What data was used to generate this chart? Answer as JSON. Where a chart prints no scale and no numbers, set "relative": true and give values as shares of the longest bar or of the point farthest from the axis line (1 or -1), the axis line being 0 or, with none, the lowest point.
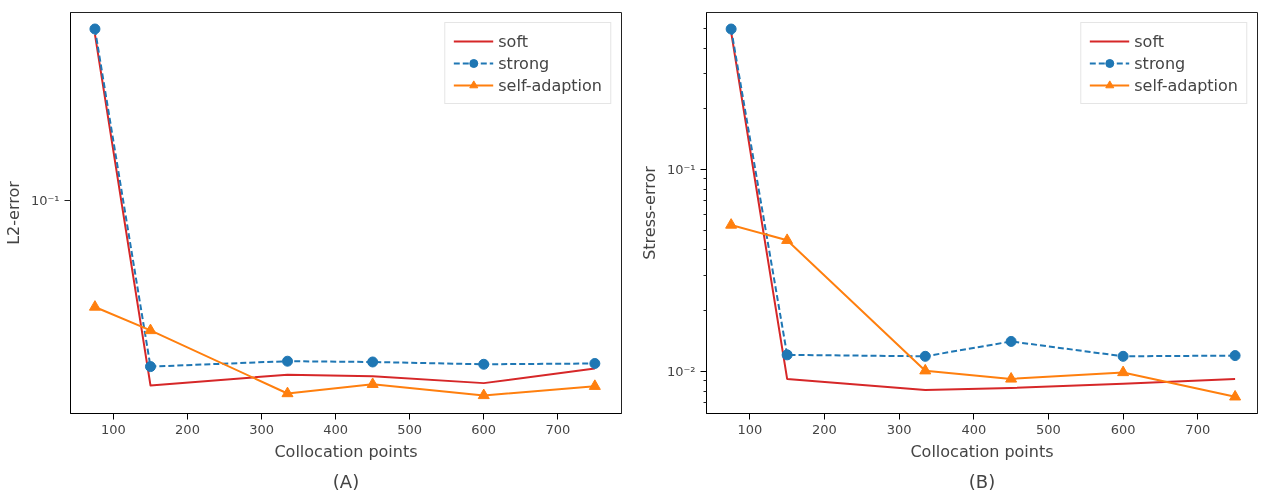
{
  "chart_data": [
    {
      "type": "line",
      "relative": true,
      "xlabel": "Collocation points",
      "ylabel": "L2-error",
      "annotations": [
        "(A)",
        "10⁻¹"
      ],
      "grid": false,
      "legend": "top right",
      "x": [
        75,
        150,
        335,
        450,
        600,
        750
      ],
      "xlim": [
        42,
        786
      ],
      "xticks": [
        100,
        200,
        300,
        400,
        500,
        600,
        700
      ],
      "series": [
        {
          "name": "soft",
          "color": "#d62728",
          "marker": "none",
          "line_style": "solid",
          "values": [
            0.986,
            0.073,
            0.101,
            0.097,
            0.079,
            0.117
          ]
        },
        {
          "name": "strong",
          "color": "#1f77b4",
          "marker": "circle",
          "line_style": "dashed",
          "values": [
            1,
            0.122,
            0.136,
            0.134,
            0.128,
            0.13
          ]
        },
        {
          "name": "self-adaption",
          "color": "#ff7f0e",
          "marker": "triangle",
          "line_style": "solid",
          "values": [
            0.277,
            0.216,
            0.052,
            0.076,
            0.047,
            0.071
          ]
        }
      ]
    },
    {
      "type": "line",
      "xlabel": "Collocation points",
      "ylabel": "Stress-error",
      "annotations": [
        "(B)"
      ],
      "log": "y",
      "grid": false,
      "legend": "top right",
      "x": [
        75,
        150,
        335,
        450,
        600,
        750
      ],
      "xlim": [
        42,
        780
      ],
      "xticks": [
        100,
        200,
        300,
        400,
        500,
        600,
        700
      ],
      "ylim": [
        0.0062,
        0.6
      ],
      "yticks": [
        {
          "value": 0.007,
          "label": null
        },
        {
          "value": 0.008,
          "label": null
        },
        {
          "value": 0.009,
          "label": null
        },
        {
          "value": 0.01,
          "label": "10⁻²"
        },
        {
          "value": 0.02,
          "label": null
        },
        {
          "value": 0.03,
          "label": null
        },
        {
          "value": 0.04,
          "label": null
        },
        {
          "value": 0.05,
          "label": null
        },
        {
          "value": 0.06,
          "label": null
        },
        {
          "value": 0.07,
          "label": null
        },
        {
          "value": 0.08,
          "label": null
        },
        {
          "value": 0.09,
          "label": null
        },
        {
          "value": 0.1,
          "label": "10⁻¹"
        },
        {
          "value": 0.2,
          "label": null
        },
        {
          "value": 0.3,
          "label": null
        },
        {
          "value": 0.4,
          "label": null
        },
        {
          "value": 0.5,
          "label": null
        }
      ],
      "series": [
        {
          "name": "soft",
          "color": "#d62728",
          "marker": "none",
          "line_style": "solid",
          "values": [
            0.48,
            0.0092,
            0.0081,
            0.0083,
            0.0087,
            0.0092
          ]
        },
        {
          "name": "strong",
          "color": "#1f77b4",
          "marker": "circle",
          "line_style": "dashed",
          "values": [
            0.497,
            0.0121,
            0.0119,
            0.0141,
            0.0119,
            0.012
          ]
        },
        {
          "name": "self-adaption",
          "color": "#ff7f0e",
          "marker": "triangle",
          "line_style": "solid",
          "values": [
            0.0532,
            0.0447,
            0.0101,
            0.0092,
            0.0099,
            0.0075
          ]
        }
      ]
    }
  ]
}
